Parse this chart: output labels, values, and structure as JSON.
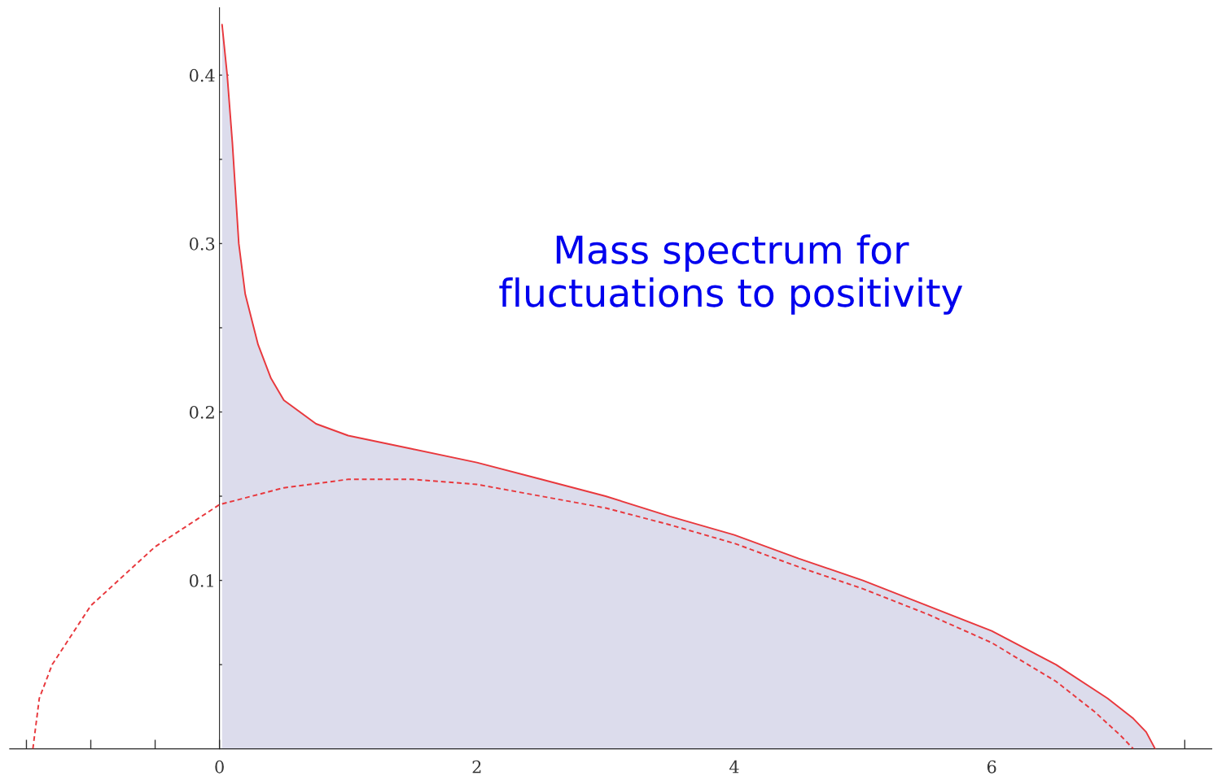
{
  "chart_data": {
    "type": "line",
    "annotations": [
      "Mass spectrum for\nfluctuations to positivity"
    ],
    "series": [
      {
        "type": "area",
        "color": "#e8383d",
        "line_style": "solid",
        "x": [
          0.02,
          0.06,
          0.1,
          0.15,
          0.2,
          0.3,
          0.4,
          0.5,
          0.75,
          1.0,
          1.5,
          2.0,
          2.5,
          3.0,
          3.5,
          4.0,
          4.5,
          5.0,
          5.5,
          6.0,
          6.5,
          6.9,
          7.1,
          7.2,
          7.27
        ],
        "values": [
          0.43,
          0.4,
          0.36,
          0.3,
          0.27,
          0.24,
          0.22,
          0.207,
          0.193,
          0.186,
          0.178,
          0.17,
          0.16,
          0.15,
          0.138,
          0.127,
          0.113,
          0.1,
          0.085,
          0.07,
          0.05,
          0.03,
          0.018,
          0.01,
          0.0
        ]
      },
      {
        "color": "#e8383d",
        "line_style": "dashed",
        "x": [
          -1.45,
          -1.4,
          -1.3,
          -1.0,
          -0.5,
          0.0,
          0.5,
          1.0,
          1.5,
          2.0,
          2.5,
          3.0,
          3.5,
          4.0,
          4.5,
          5.0,
          5.5,
          6.0,
          6.5,
          6.8,
          7.0,
          7.1
        ],
        "values": [
          0.0,
          0.03,
          0.05,
          0.085,
          0.12,
          0.145,
          0.155,
          0.16,
          0.16,
          0.157,
          0.15,
          0.143,
          0.133,
          0.122,
          0.108,
          0.095,
          0.08,
          0.063,
          0.04,
          0.022,
          0.008,
          0.0
        ]
      }
    ],
    "xlim": [
      -1.63,
      7.71
    ],
    "ylim": [
      0,
      0.44
    ],
    "xticks": [
      {
        "value": -1.5,
        "label": null
      },
      {
        "value": -1,
        "label": null
      },
      {
        "value": -0.5,
        "label": null
      },
      {
        "value": 0,
        "label": "0"
      },
      {
        "value": 0.5,
        "label": null
      },
      {
        "value": 1,
        "label": null
      },
      {
        "value": 1.5,
        "label": null
      },
      {
        "value": 2,
        "label": "2"
      },
      {
        "value": 2.5,
        "label": null
      },
      {
        "value": 3,
        "label": null
      },
      {
        "value": 3.5,
        "label": null
      },
      {
        "value": 4,
        "label": "4"
      },
      {
        "value": 4.5,
        "label": null
      },
      {
        "value": 5,
        "label": null
      },
      {
        "value": 5.5,
        "label": null
      },
      {
        "value": 6,
        "label": "6"
      },
      {
        "value": 6.5,
        "label": null
      },
      {
        "value": 7,
        "label": null
      },
      {
        "value": 7.5,
        "label": null
      }
    ],
    "yticks": [
      {
        "value": 0.05,
        "label": null
      },
      {
        "value": 0.1,
        "label": "0.1"
      },
      {
        "value": 0.15,
        "label": null
      },
      {
        "value": 0.2,
        "label": "0.2"
      },
      {
        "value": 0.25,
        "label": null
      },
      {
        "value": 0.3,
        "label": "0.3"
      },
      {
        "value": 0.35,
        "label": null
      },
      {
        "value": 0.4,
        "label": "0.4"
      }
    ],
    "grid": false,
    "legend": false,
    "marker": "none"
  }
}
